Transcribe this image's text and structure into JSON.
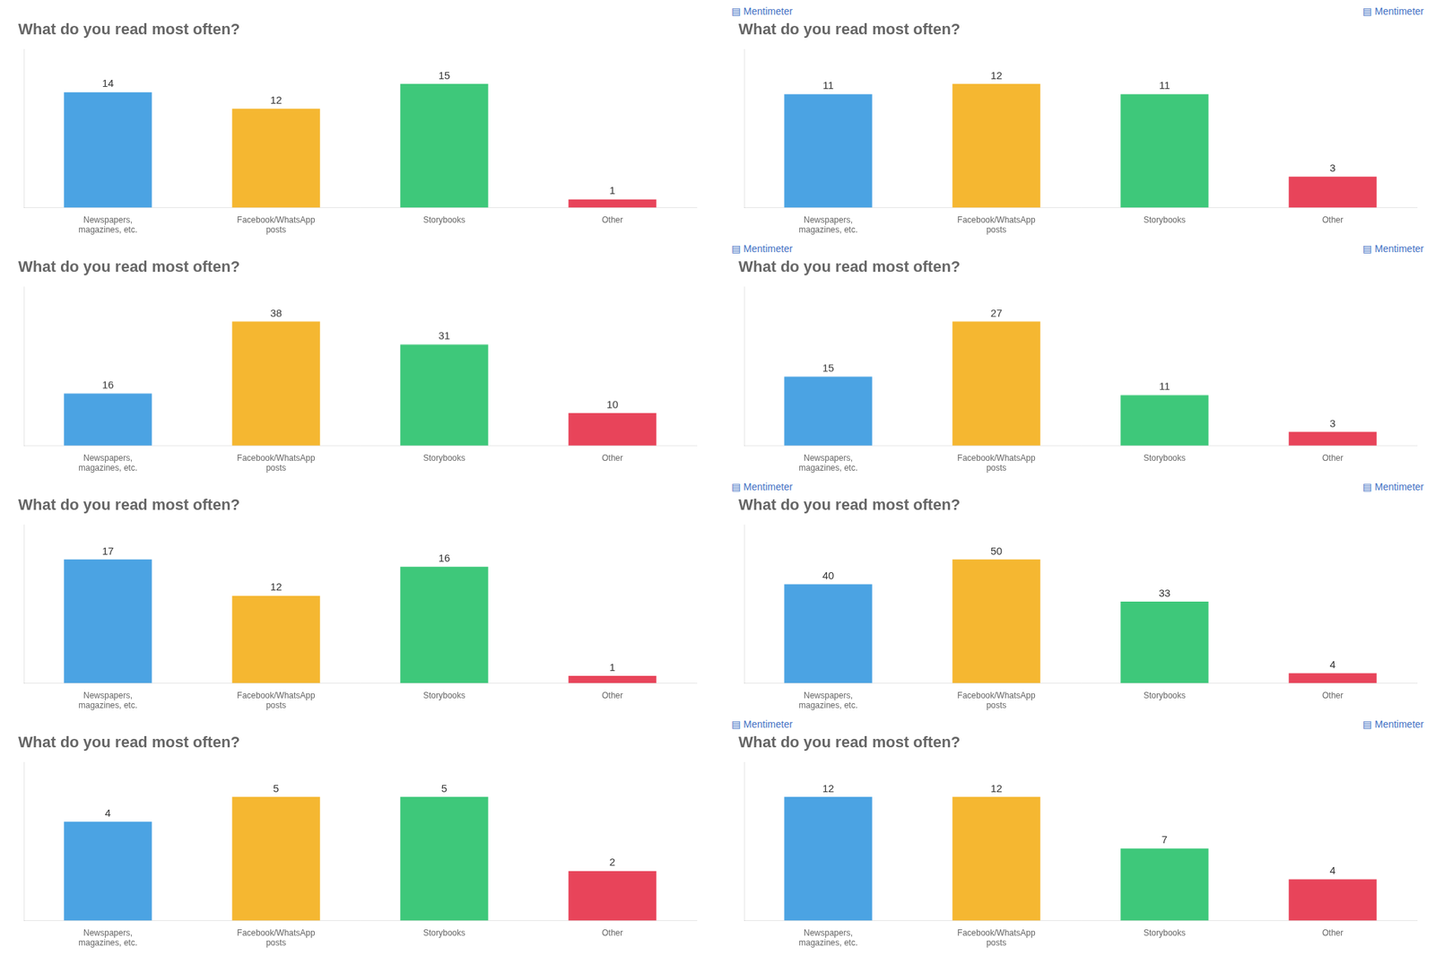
{
  "chart_data": [
    {
      "type": "bar",
      "title": "What do you read most often?",
      "categories": [
        "Newspapers,\nmagazines, etc.",
        "Facebook/WhatsApp\nposts",
        "Storybooks",
        "Other"
      ],
      "values": [
        14,
        12,
        15,
        1
      ],
      "colors": [
        "#4BA3E3",
        "#F5B731",
        "#3EC87A",
        "#E8445A"
      ],
      "ylim": [
        0,
        19.2
      ],
      "grid": false,
      "data_labels": true,
      "tick_labels": "x"
    },
    {
      "type": "bar",
      "title": "What do you read most often?",
      "categories": [
        "Newspapers,\nmagazines, etc.",
        "Facebook/WhatsApp\nposts",
        "Storybooks",
        "Other"
      ],
      "values": [
        11,
        12,
        11,
        3
      ],
      "colors": [
        "#4BA3E3",
        "#F5B731",
        "#3EC87A",
        "#E8445A"
      ],
      "ylim": [
        0,
        15.36
      ],
      "grid": false,
      "data_labels": true,
      "tick_labels": "x",
      "annotations": [
        {
          "text": "▤ Mentimeter",
          "color": "#4472C4"
        },
        {
          "text": "▤ Mentimeter",
          "color": "#4472C4"
        }
      ]
    },
    {
      "type": "bar",
      "title": "What do you read most often?",
      "categories": [
        "Newspapers,\nmagazines, etc.",
        "Facebook/WhatsApp\nposts",
        "Storybooks",
        "Other"
      ],
      "values": [
        16,
        38,
        31,
        10
      ],
      "colors": [
        "#4BA3E3",
        "#F5B731",
        "#3EC87A",
        "#E8445A"
      ],
      "ylim": [
        0,
        48.64
      ],
      "grid": false,
      "data_labels": true,
      "tick_labels": "x"
    },
    {
      "type": "bar",
      "title": "What do you read most often?",
      "categories": [
        "Newspapers,\nmagazines, etc.",
        "Facebook/WhatsApp\nposts",
        "Storybooks",
        "Other"
      ],
      "values": [
        15,
        27,
        11,
        3
      ],
      "colors": [
        "#4BA3E3",
        "#F5B731",
        "#3EC87A",
        "#E8445A"
      ],
      "ylim": [
        0,
        34.56
      ],
      "grid": false,
      "data_labels": true,
      "tick_labels": "x",
      "annotations": [
        {
          "text": "▤ Mentimeter",
          "color": "#4472C4"
        },
        {
          "text": "▤ Mentimeter",
          "color": "#4472C4"
        }
      ]
    },
    {
      "type": "bar",
      "title": "What do you read most often?",
      "categories": [
        "Newspapers,\nmagazines, etc.",
        "Facebook/WhatsApp\nposts",
        "Storybooks",
        "Other"
      ],
      "values": [
        17,
        12,
        16,
        1
      ],
      "colors": [
        "#4BA3E3",
        "#F5B731",
        "#3EC87A",
        "#E8445A"
      ],
      "ylim": [
        0,
        21.76
      ],
      "grid": false,
      "data_labels": true,
      "tick_labels": "x"
    },
    {
      "type": "bar",
      "title": "What do you read most often?",
      "categories": [
        "Newspapers,\nmagazines, etc.",
        "Facebook/WhatsApp\nposts",
        "Storybooks",
        "Other"
      ],
      "values": [
        40,
        50,
        33,
        4
      ],
      "colors": [
        "#4BA3E3",
        "#F5B731",
        "#3EC87A",
        "#E8445A"
      ],
      "ylim": [
        0,
        64
      ],
      "grid": false,
      "data_labels": true,
      "tick_labels": "x",
      "annotations": [
        {
          "text": "▤ Mentimeter",
          "color": "#4472C4"
        },
        {
          "text": "▤ Mentimeter",
          "color": "#4472C4"
        }
      ]
    },
    {
      "type": "bar",
      "title": "What do you read most often?",
      "categories": [
        "Newspapers,\nmagazines, etc.",
        "Facebook/WhatsApp\nposts",
        "Storybooks",
        "Other"
      ],
      "values": [
        4,
        5,
        5,
        2
      ],
      "colors": [
        "#4BA3E3",
        "#F5B731",
        "#3EC87A",
        "#E8445A"
      ],
      "ylim": [
        0,
        6.4
      ],
      "grid": false,
      "data_labels": true,
      "tick_labels": "x"
    },
    {
      "type": "bar",
      "title": "What do you read most often?",
      "categories": [
        "Newspapers,\nmagazines, etc.",
        "Facebook/WhatsApp\nposts",
        "Storybooks",
        "Other"
      ],
      "values": [
        12,
        12,
        7,
        4
      ],
      "colors": [
        "#4BA3E3",
        "#F5B731",
        "#3EC87A",
        "#E8445A"
      ],
      "ylim": [
        0,
        15.36
      ],
      "grid": false,
      "data_labels": true,
      "tick_labels": "x",
      "annotations": [
        {
          "text": "▤ Mentimeter",
          "color": "#4472C4"
        },
        {
          "text": "▤ Mentimeter",
          "color": "#4472C4"
        }
      ]
    }
  ]
}
